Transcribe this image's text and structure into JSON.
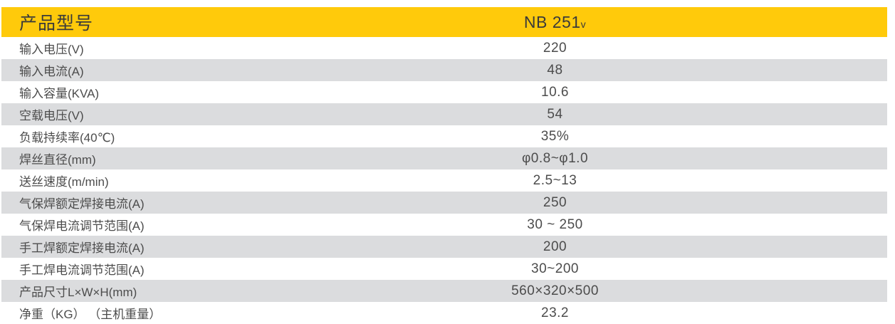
{
  "colors": {
    "header-bg": "#ffca0b",
    "row-alt-bg": "#dbdcde",
    "header-text": "#3a3a3a",
    "body-text": "#4c4c4c",
    "page-bg": "#ffffff"
  },
  "table": {
    "header": {
      "label": "产品型号",
      "model": "NB 251",
      "model_suffix": "v"
    },
    "rows": [
      {
        "label": "输入电压(V)",
        "value": "220"
      },
      {
        "label": "输入电流(A)",
        "value": "48"
      },
      {
        "label": "输入容量(KVA)",
        "value": "10.6"
      },
      {
        "label": "空载电压(V)",
        "value": "54"
      },
      {
        "label": "负载持续率(40℃)",
        "value": "35%"
      },
      {
        "label": "焊丝直径(mm)",
        "value": "φ0.8~φ1.0"
      },
      {
        "label": "送丝速度(m/min)",
        "value": "2.5~13"
      },
      {
        "label": "气保焊额定焊接电流(A)",
        "value": "250"
      },
      {
        "label": "气保焊电流调节范围(A)",
        "value": "30 ~ 250"
      },
      {
        "label": "手工焊额定焊接电流(A)",
        "value": "200"
      },
      {
        "label": "手工焊电流调节范围(A)",
        "value": "30~200"
      },
      {
        "label": "产品尺寸L×W×H(mm)",
        "value": "560×320×500"
      },
      {
        "label": "净重（KG） （主机重量）",
        "value": "23.2"
      }
    ]
  }
}
